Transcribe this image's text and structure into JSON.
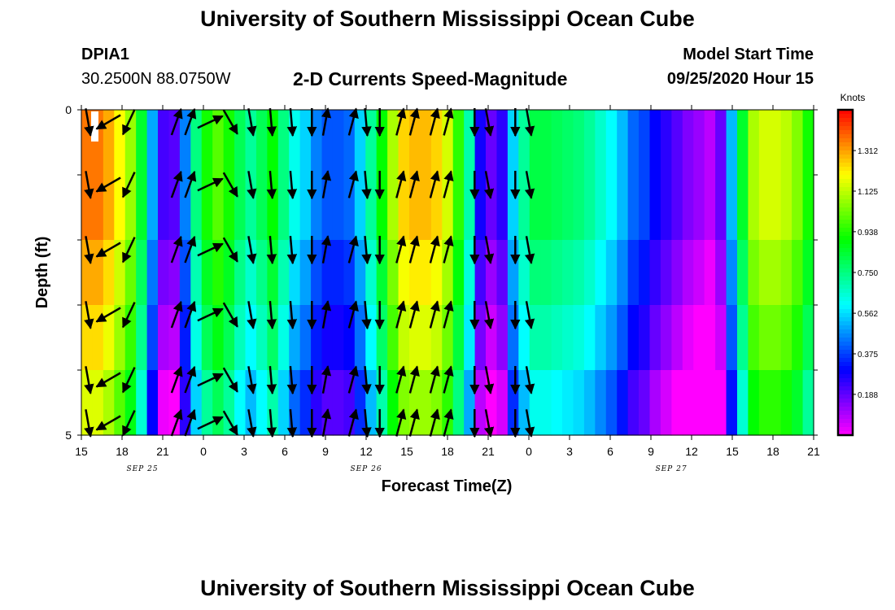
{
  "header": {
    "title": "University of Southern Mississippi Ocean Cube",
    "station_id": "DPIA1",
    "coords": "30.2500N 88.0750W",
    "chart_title": "2-D Currents Speed-Magnitude",
    "model_label": "Model Start Time",
    "model_time": "09/25/2020 Hour 15"
  },
  "footer": {
    "title": "University of Southern Mississippi Ocean Cube"
  },
  "chart_data": {
    "type": "heatmap",
    "title": "2-D Currents Speed-Magnitude",
    "xlabel": "Forecast Time(Z)",
    "ylabel": "Depth (ft)",
    "x_tick_labels": [
      "15",
      "18",
      "21",
      "0",
      "3",
      "6",
      "9",
      "12",
      "15",
      "18",
      "21",
      "0",
      "3",
      "6",
      "9",
      "12",
      "15",
      "18",
      "21"
    ],
    "date_labels": [
      {
        "label": "SEP 25",
        "tick_index": 1.5
      },
      {
        "label": "SEP 26",
        "tick_index": 7
      },
      {
        "label": "SEP 27",
        "tick_index": 14.5
      }
    ],
    "y_tick_labels": [
      "0",
      "5"
    ],
    "depth_range_ft": [
      0,
      5
    ],
    "colorbar": {
      "unit": "Knots",
      "range": [
        0,
        1.5
      ],
      "tick_labels": [
        "1.312",
        "1.125",
        "0.938",
        "0.750",
        "0.562",
        "0.375",
        "0.188"
      ]
    },
    "speed_columns_knots": [
      1.36,
      1.36,
      1.3,
      1.2,
      1.08,
      0.85,
      0.5,
      0.22,
      0.2,
      0.45,
      0.75,
      0.92,
      1.0,
      0.92,
      0.8,
      0.72,
      0.8,
      0.9,
      0.75,
      0.62,
      0.55,
      0.45,
      0.4,
      0.4,
      0.42,
      0.55,
      0.72,
      0.9,
      1.1,
      1.25,
      1.28,
      1.28,
      1.25,
      1.15,
      0.95,
      0.7,
      0.28,
      0.18,
      0.25,
      0.55,
      0.72,
      0.82,
      0.82,
      0.8,
      0.78,
      0.76,
      0.72,
      0.66,
      0.6,
      0.52,
      0.42,
      0.38,
      0.3,
      0.25,
      0.2,
      0.15,
      0.12,
      0.08,
      0.18,
      0.52,
      0.85,
      1.1,
      1.15,
      1.15,
      1.12,
      1.05,
      0.92
    ],
    "speed_layer_offsets": [
      0,
      0,
      -0.06,
      -0.12,
      -0.2
    ],
    "arrow_columns_hours": [
      -0.5,
      0.5,
      2,
      3.5,
      7,
      8,
      9.5,
      11,
      12.5,
      14,
      15.5,
      17,
      18,
      20,
      21,
      22,
      23.5,
      24.5,
      26,
      27,
      29,
      30,
      32,
      33
    ],
    "arrow_directions_deg": [
      170,
      170,
      240,
      205,
      20,
      20,
      65,
      150,
      170,
      175,
      175,
      180,
      10,
      15,
      175,
      180,
      15,
      15,
      15,
      15,
      180,
      170,
      180,
      170
    ]
  }
}
